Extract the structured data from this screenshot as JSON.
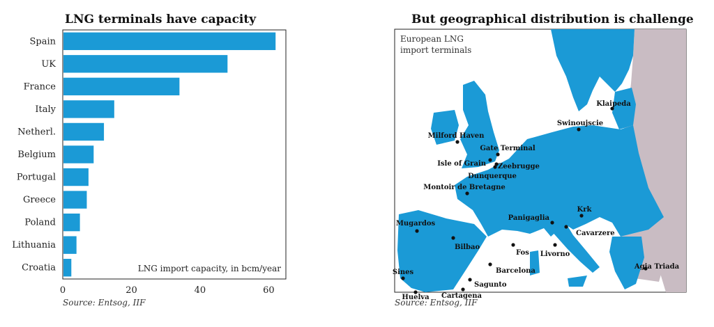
{
  "left": {
    "title": "LNG terminals have capacity",
    "source": "Source: Entsog, IIF"
  },
  "right": {
    "title": "But geographical distribution is challenge",
    "source": "Source: Entsog, IIF",
    "map_label": "European LNG import terminals",
    "terminals": [
      "Klaipeda",
      "Swinoujscie",
      "Milford Haven",
      "Gate Terminal",
      "Isle of Grain",
      "Zeebrugge",
      "Dunquerque",
      "Montoir de Bretagne",
      "Mugardos",
      "Krk",
      "Panigaglia",
      "Cavarzere",
      "Bilbao",
      "Fos",
      "Livorno",
      "Barcelona",
      "Sines",
      "Sagunto",
      "Huelva",
      "Cartagena",
      "Agia Triada"
    ]
  },
  "chart_data": {
    "type": "bar",
    "orientation": "horizontal",
    "categories": [
      "Spain",
      "UK",
      "France",
      "Italy",
      "Netherl.",
      "Belgium",
      "Portugal",
      "Greece",
      "Poland",
      "Lithuania",
      "Croatia"
    ],
    "values": [
      62,
      48,
      34,
      15,
      12,
      9,
      7.5,
      7,
      5,
      4,
      2.5
    ],
    "xticks": [
      0,
      20,
      40,
      60
    ],
    "xlim": [
      0,
      65
    ],
    "annotation": "LNG import capacity, in bcm/year",
    "colors": {
      "bar": "#1b9ad6",
      "land": "#1b9ad6",
      "non_eu": "#c9bcc3",
      "sea": "#ffffff"
    }
  }
}
